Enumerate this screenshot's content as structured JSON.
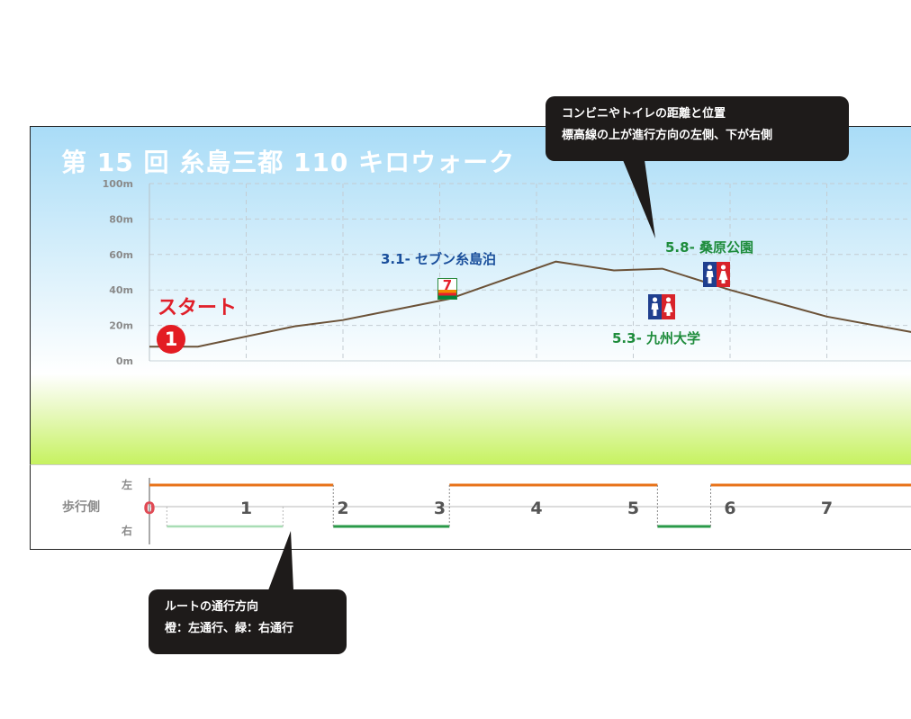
{
  "title": "第 15 回 糸島三都 110 キロウォーク",
  "start": {
    "label": "スタート",
    "marker": "1"
  },
  "poi": [
    {
      "label": "3.1- セブン糸島泊",
      "km": 3.1,
      "type": "convenience-store",
      "position": "above",
      "icon_text": "7",
      "color": "#1a4f9c"
    },
    {
      "label": "5.3- 九州大学",
      "km": 5.3,
      "type": "toilet",
      "position": "below",
      "color": "#1e8c3c"
    },
    {
      "label": "5.8- 桑原公園",
      "km": 5.8,
      "type": "toilet",
      "position": "above",
      "color": "#1e8c3c"
    }
  ],
  "side_panel": {
    "title": "歩行側",
    "left_label": "左",
    "right_label": "右"
  },
  "callouts": {
    "top": {
      "line1": "コンビニやトイレの距離と位置",
      "line2": "標高線の上が進行方向の左側、下が右側"
    },
    "bottom": {
      "line1": "ルートの通行方向",
      "line2": "橙：左通行、緑：右通行"
    }
  },
  "colors": {
    "elevation_line": "#6b5238",
    "left_walk": "#e8731a",
    "right_walk": "#2a9a48",
    "right_walk_light": "#a8ddb4",
    "start_red": "#e31c23",
    "toilet_blue": "#1f3f8f",
    "toilet_red": "#d8232a"
  },
  "chart_data": {
    "type": "line",
    "title": "第 15 回 糸島三都 110 キロウォーク",
    "xlabel": "",
    "ylabel": "",
    "y_ticks": [
      "0m",
      "20m",
      "40m",
      "60m",
      "80m",
      "100m"
    ],
    "ylim": [
      0,
      100
    ],
    "xlim": [
      0,
      7.9
    ],
    "grid": true,
    "x_ticks": [
      "0",
      "1",
      "2",
      "3",
      "4",
      "5",
      "6",
      "7"
    ],
    "series": [
      {
        "x": [
          0,
          0.5,
          1.5,
          2.0,
          3.1,
          4.2,
          4.8,
          5.3,
          6.0,
          7.0,
          7.9
        ],
        "y": [
          8,
          8,
          19.5,
          23,
          35,
          56,
          51,
          52,
          40,
          25,
          16
        ]
      }
    ],
    "walk_side": [
      {
        "side": "right",
        "from": 0.18,
        "to": 1.38,
        "style": "light"
      },
      {
        "side": "left",
        "from": 0,
        "to": 1.9
      },
      {
        "side": "right",
        "from": 1.9,
        "to": 3.1
      },
      {
        "side": "left",
        "from": 3.1,
        "to": 5.25
      },
      {
        "side": "right",
        "from": 5.25,
        "to": 5.8
      },
      {
        "side": "left",
        "from": 5.8,
        "to": 7.9
      }
    ]
  }
}
